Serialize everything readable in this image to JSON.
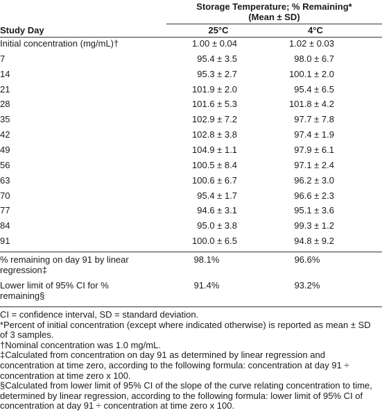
{
  "table": {
    "group_header": [
      "Storage Temperature; % Remaining*",
      "(Mean ± SD)"
    ],
    "columns": [
      "Study Day",
      "25°C",
      "4°C"
    ],
    "rows": [
      [
        "Initial concentration (mg/mL)†",
        "1.00 ± 0.04",
        "1.02 ± 0.03"
      ],
      [
        "7",
        "95.4 ± 3.5",
        "98.0 ± 6.7"
      ],
      [
        "14",
        "95.3 ± 2.7",
        "100.1 ± 2.0"
      ],
      [
        "21",
        "101.9 ± 2.0",
        "95.4 ± 6.5"
      ],
      [
        "28",
        "101.6 ± 5.3",
        "101.8 ± 4.2"
      ],
      [
        "35",
        "102.9 ± 7.2",
        "97.7 ± 7.8"
      ],
      [
        "42",
        "102.8 ± 3.8",
        "97.4 ± 1.9"
      ],
      [
        "49",
        "104.9 ± 1.1",
        "97.9 ± 6.1"
      ],
      [
        "56",
        "100.5 ± 8.4",
        "97.1 ± 2.4"
      ],
      [
        "63",
        "100.6 ± 6.7",
        "96.2 ± 3.0"
      ],
      [
        "70",
        "95.4 ± 1.7",
        "96.6 ± 2.3"
      ],
      [
        "77",
        "94.6 ± 3.1",
        "95.1 ± 3.6"
      ],
      [
        "84",
        "95.0 ± 3.8",
        "99.3 ± 1.2"
      ],
      [
        "91",
        "100.0 ± 6.5",
        "94.8 ± 9.2"
      ]
    ],
    "summary_rows": [
      [
        "% remaining on day 91 by linear regression‡",
        "98.1%",
        "96.6%"
      ],
      [
        "Lower limit of 95% CI for % remaining§",
        "91.4%",
        "93.2%"
      ]
    ]
  },
  "footnotes": [
    "CI = confidence interval, SD = standard deviation.",
    "*Percent of initial concentration (except where indicated otherwise) is reported as mean ± SD of 3 samples.",
    "†Nominal concentration was 1.0 mg/mL.",
    "‡Calculated from concentration on day 91 as determined by linear regression and concentration at time zero, according to the following formula: concentration at day 91 ÷ concentration at time zero x 100.",
    "§Calculated from lower limit of 95% CI of the slope of the curve relating concentration to time, determined by linear regression, according to the following formula: lower limit of 95% CI of concentration at day 91 ÷ concentration at time zero x 100."
  ]
}
